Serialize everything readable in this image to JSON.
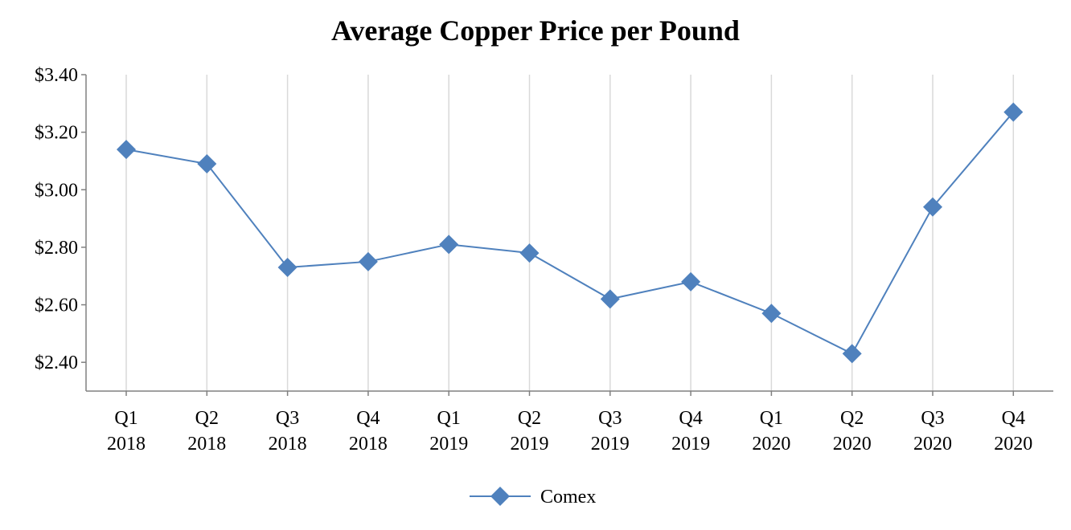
{
  "chart_data": {
    "type": "line",
    "title": "Average Copper Price per Pound",
    "categories": [
      [
        "Q1",
        "2018"
      ],
      [
        "Q2",
        "2018"
      ],
      [
        "Q3",
        "2018"
      ],
      [
        "Q4",
        "2018"
      ],
      [
        "Q1",
        "2019"
      ],
      [
        "Q2",
        "2019"
      ],
      [
        "Q3",
        "2019"
      ],
      [
        "Q4",
        "2019"
      ],
      [
        "Q1",
        "2020"
      ],
      [
        "Q2",
        "2020"
      ],
      [
        "Q3",
        "2020"
      ],
      [
        "Q4",
        "2020"
      ]
    ],
    "series": [
      {
        "name": "Comex",
        "values": [
          3.14,
          3.09,
          2.73,
          2.75,
          2.81,
          2.78,
          2.62,
          2.68,
          2.57,
          2.43,
          2.94,
          3.27
        ]
      }
    ],
    "ylim": [
      2.3,
      3.4
    ],
    "yticks": [
      2.4,
      2.6,
      2.8,
      3.0,
      3.2,
      3.4
    ],
    "ytick_labels": [
      "$2.40",
      "$2.60",
      "$2.80",
      "$3.00",
      "$3.20",
      "$3.40"
    ],
    "xlabel": "",
    "ylabel": "",
    "grid": "vertical",
    "legend": "bottom-center",
    "colors": {
      "series": "#4F81BD",
      "grid": "#D9D9D9",
      "axis": "#808080"
    }
  }
}
